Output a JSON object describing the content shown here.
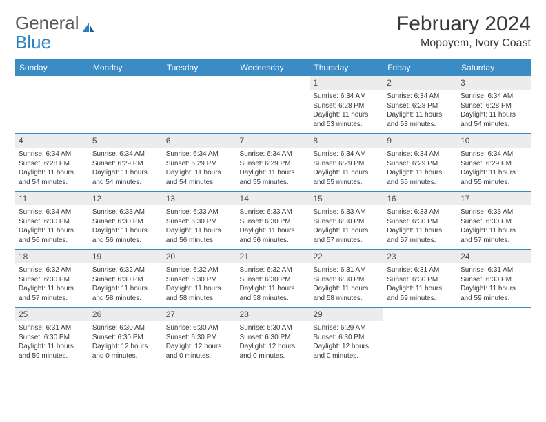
{
  "header": {
    "logo_general": "General",
    "logo_blue": "Blue",
    "month_title": "February 2024",
    "location": "Mopoyem, Ivory Coast"
  },
  "day_headers": [
    "Sunday",
    "Monday",
    "Tuesday",
    "Wednesday",
    "Thursday",
    "Friday",
    "Saturday"
  ],
  "colors": {
    "header_bg": "#3b8bc4",
    "header_fg": "#ffffff",
    "daynum_bg": "#ececec",
    "border": "#3b8bc4",
    "logo_gray": "#5a5a5a",
    "logo_blue": "#2b7fbf"
  },
  "weeks": [
    [
      {
        "num": "",
        "sunrise": "",
        "sunset": "",
        "daylight": ""
      },
      {
        "num": "",
        "sunrise": "",
        "sunset": "",
        "daylight": ""
      },
      {
        "num": "",
        "sunrise": "",
        "sunset": "",
        "daylight": ""
      },
      {
        "num": "",
        "sunrise": "",
        "sunset": "",
        "daylight": ""
      },
      {
        "num": "1",
        "sunrise": "Sunrise: 6:34 AM",
        "sunset": "Sunset: 6:28 PM",
        "daylight": "Daylight: 11 hours and 53 minutes."
      },
      {
        "num": "2",
        "sunrise": "Sunrise: 6:34 AM",
        "sunset": "Sunset: 6:28 PM",
        "daylight": "Daylight: 11 hours and 53 minutes."
      },
      {
        "num": "3",
        "sunrise": "Sunrise: 6:34 AM",
        "sunset": "Sunset: 6:28 PM",
        "daylight": "Daylight: 11 hours and 54 minutes."
      }
    ],
    [
      {
        "num": "4",
        "sunrise": "Sunrise: 6:34 AM",
        "sunset": "Sunset: 6:28 PM",
        "daylight": "Daylight: 11 hours and 54 minutes."
      },
      {
        "num": "5",
        "sunrise": "Sunrise: 6:34 AM",
        "sunset": "Sunset: 6:29 PM",
        "daylight": "Daylight: 11 hours and 54 minutes."
      },
      {
        "num": "6",
        "sunrise": "Sunrise: 6:34 AM",
        "sunset": "Sunset: 6:29 PM",
        "daylight": "Daylight: 11 hours and 54 minutes."
      },
      {
        "num": "7",
        "sunrise": "Sunrise: 6:34 AM",
        "sunset": "Sunset: 6:29 PM",
        "daylight": "Daylight: 11 hours and 55 minutes."
      },
      {
        "num": "8",
        "sunrise": "Sunrise: 6:34 AM",
        "sunset": "Sunset: 6:29 PM",
        "daylight": "Daylight: 11 hours and 55 minutes."
      },
      {
        "num": "9",
        "sunrise": "Sunrise: 6:34 AM",
        "sunset": "Sunset: 6:29 PM",
        "daylight": "Daylight: 11 hours and 55 minutes."
      },
      {
        "num": "10",
        "sunrise": "Sunrise: 6:34 AM",
        "sunset": "Sunset: 6:29 PM",
        "daylight": "Daylight: 11 hours and 55 minutes."
      }
    ],
    [
      {
        "num": "11",
        "sunrise": "Sunrise: 6:34 AM",
        "sunset": "Sunset: 6:30 PM",
        "daylight": "Daylight: 11 hours and 56 minutes."
      },
      {
        "num": "12",
        "sunrise": "Sunrise: 6:33 AM",
        "sunset": "Sunset: 6:30 PM",
        "daylight": "Daylight: 11 hours and 56 minutes."
      },
      {
        "num": "13",
        "sunrise": "Sunrise: 6:33 AM",
        "sunset": "Sunset: 6:30 PM",
        "daylight": "Daylight: 11 hours and 56 minutes."
      },
      {
        "num": "14",
        "sunrise": "Sunrise: 6:33 AM",
        "sunset": "Sunset: 6:30 PM",
        "daylight": "Daylight: 11 hours and 56 minutes."
      },
      {
        "num": "15",
        "sunrise": "Sunrise: 6:33 AM",
        "sunset": "Sunset: 6:30 PM",
        "daylight": "Daylight: 11 hours and 57 minutes."
      },
      {
        "num": "16",
        "sunrise": "Sunrise: 6:33 AM",
        "sunset": "Sunset: 6:30 PM",
        "daylight": "Daylight: 11 hours and 57 minutes."
      },
      {
        "num": "17",
        "sunrise": "Sunrise: 6:33 AM",
        "sunset": "Sunset: 6:30 PM",
        "daylight": "Daylight: 11 hours and 57 minutes."
      }
    ],
    [
      {
        "num": "18",
        "sunrise": "Sunrise: 6:32 AM",
        "sunset": "Sunset: 6:30 PM",
        "daylight": "Daylight: 11 hours and 57 minutes."
      },
      {
        "num": "19",
        "sunrise": "Sunrise: 6:32 AM",
        "sunset": "Sunset: 6:30 PM",
        "daylight": "Daylight: 11 hours and 58 minutes."
      },
      {
        "num": "20",
        "sunrise": "Sunrise: 6:32 AM",
        "sunset": "Sunset: 6:30 PM",
        "daylight": "Daylight: 11 hours and 58 minutes."
      },
      {
        "num": "21",
        "sunrise": "Sunrise: 6:32 AM",
        "sunset": "Sunset: 6:30 PM",
        "daylight": "Daylight: 11 hours and 58 minutes."
      },
      {
        "num": "22",
        "sunrise": "Sunrise: 6:31 AM",
        "sunset": "Sunset: 6:30 PM",
        "daylight": "Daylight: 11 hours and 58 minutes."
      },
      {
        "num": "23",
        "sunrise": "Sunrise: 6:31 AM",
        "sunset": "Sunset: 6:30 PM",
        "daylight": "Daylight: 11 hours and 59 minutes."
      },
      {
        "num": "24",
        "sunrise": "Sunrise: 6:31 AM",
        "sunset": "Sunset: 6:30 PM",
        "daylight": "Daylight: 11 hours and 59 minutes."
      }
    ],
    [
      {
        "num": "25",
        "sunrise": "Sunrise: 6:31 AM",
        "sunset": "Sunset: 6:30 PM",
        "daylight": "Daylight: 11 hours and 59 minutes."
      },
      {
        "num": "26",
        "sunrise": "Sunrise: 6:30 AM",
        "sunset": "Sunset: 6:30 PM",
        "daylight": "Daylight: 12 hours and 0 minutes."
      },
      {
        "num": "27",
        "sunrise": "Sunrise: 6:30 AM",
        "sunset": "Sunset: 6:30 PM",
        "daylight": "Daylight: 12 hours and 0 minutes."
      },
      {
        "num": "28",
        "sunrise": "Sunrise: 6:30 AM",
        "sunset": "Sunset: 6:30 PM",
        "daylight": "Daylight: 12 hours and 0 minutes."
      },
      {
        "num": "29",
        "sunrise": "Sunrise: 6:29 AM",
        "sunset": "Sunset: 6:30 PM",
        "daylight": "Daylight: 12 hours and 0 minutes."
      },
      {
        "num": "",
        "sunrise": "",
        "sunset": "",
        "daylight": ""
      },
      {
        "num": "",
        "sunrise": "",
        "sunset": "",
        "daylight": ""
      }
    ]
  ]
}
